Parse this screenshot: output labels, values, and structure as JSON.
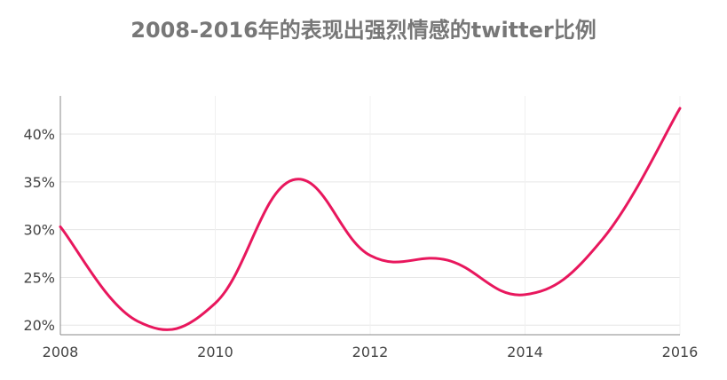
{
  "chart_data": {
    "type": "line",
    "title": "2008-2016年的表现出强烈情感的twitter比例",
    "xlabel": "",
    "ylabel": "",
    "x": [
      2008,
      2009,
      2010,
      2011,
      2012,
      2013,
      2014,
      2015,
      2016
    ],
    "series": [
      {
        "values": [
          30.3,
          20.4,
          22.3,
          35.2,
          27.3,
          26.8,
          23.2,
          29.0,
          42.7
        ]
      }
    ],
    "xlim": [
      2008,
      2016
    ],
    "ylim": [
      19,
      44
    ],
    "xticks": [
      2008,
      2010,
      2012,
      2014,
      2016
    ],
    "yticks": [
      20,
      25,
      30,
      35,
      40
    ],
    "ytick_labels": [
      "20%",
      "25%",
      "30%",
      "35%",
      "40%"
    ],
    "grid": true,
    "line_color": "#e8175d",
    "grid_color": "#e6e6e6",
    "axis_color": "#888888"
  }
}
